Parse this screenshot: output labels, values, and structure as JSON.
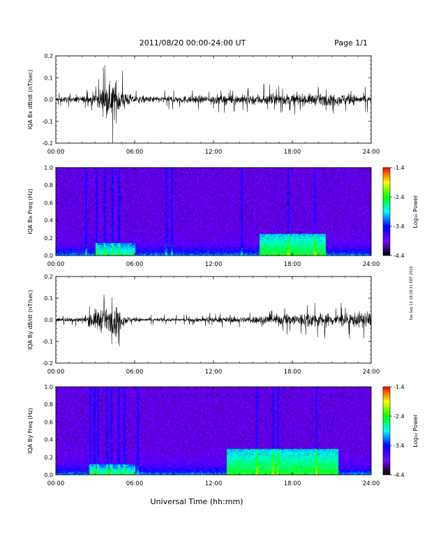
{
  "header": {
    "title": "2011/08/20  00:00-24:00 UT",
    "page": "Page 1/1"
  },
  "footer": {
    "xlabel": "Universal Time (hh:mm)",
    "side_stamp": "Tue Sep 13 18:28:31 EDT 2016"
  },
  "chart_data": [
    {
      "type": "line",
      "name": "bx-timeseries",
      "ylabel": "IQA Bx dB/dt (nT/sec)",
      "xlim_hours": [
        0,
        24
      ],
      "ylim": [
        -0.2,
        0.2
      ],
      "x_ticks": [
        "00:00",
        "06:00",
        "12:00",
        "18:00",
        "24:00"
      ],
      "y_ticks": [
        "-0.2",
        "-0.1",
        "0.0",
        "0.1",
        "0.2"
      ],
      "y_tick_values": [
        -0.2,
        -0.1,
        0.0,
        0.1,
        0.2
      ],
      "envelope": {
        "hours": [
          0,
          1,
          2,
          2.5,
          3,
          3.5,
          4,
          4.3,
          4.6,
          4.8,
          5.0,
          5.3,
          5.6,
          6,
          7,
          8,
          9,
          10,
          11,
          12,
          13,
          14,
          15,
          16,
          17,
          18,
          19,
          20,
          21,
          22,
          23,
          24
        ],
        "amplitude": [
          0.03,
          0.03,
          0.035,
          0.05,
          0.08,
          0.12,
          0.15,
          0.19,
          0.2,
          0.17,
          0.13,
          0.09,
          0.06,
          0.04,
          0.035,
          0.035,
          0.04,
          0.04,
          0.04,
          0.05,
          0.05,
          0.05,
          0.06,
          0.06,
          0.06,
          0.06,
          0.06,
          0.06,
          0.06,
          0.06,
          0.05,
          0.05
        ]
      }
    },
    {
      "type": "heatmap",
      "name": "bx-spectrogram",
      "ylabel": "IQA Bx Freq (Hz)",
      "xlim_hours": [
        0,
        24
      ],
      "ylim": [
        0.0,
        1.0
      ],
      "x_ticks": [
        "00:00",
        "06:00",
        "12:00",
        "18:00",
        "24:00"
      ],
      "y_ticks": [
        "0.0",
        "0.2",
        "0.4",
        "0.6",
        "0.8",
        "1.0"
      ],
      "colorbar": {
        "label": "Log₁₀ Power",
        "range": [
          -4.4,
          -1.4
        ],
        "ticks": [
          "-1.4",
          "-2.4",
          "-3.4",
          "-4.4"
        ],
        "colors": [
          "#ff0000",
          "#ffff00",
          "#00ff00",
          "#00ffff",
          "#0000ff",
          "#7a00ff",
          "#000000"
        ]
      },
      "enhancements": [
        {
          "hour_from": 3.0,
          "hour_to": 6.0,
          "freq_top": 0.15,
          "level": -2.6
        },
        {
          "hour_from": 15.5,
          "hour_to": 20.5,
          "freq_top": 0.25,
          "level": -2.4
        }
      ],
      "vertical_streaks_hours": [
        2.3,
        3.1,
        3.7,
        4.3,
        4.8,
        8.4,
        8.8,
        14.1,
        17.7,
        19.7
      ]
    },
    {
      "type": "line",
      "name": "by-timeseries",
      "ylabel": "IQA By dB/dt (nT/sec)",
      "xlim_hours": [
        0,
        24
      ],
      "ylim": [
        -0.2,
        0.2
      ],
      "x_ticks": [
        "00:00",
        "06:00",
        "12:00",
        "18:00",
        "24:00"
      ],
      "y_ticks": [
        "-0.2",
        "-0.1",
        "0.0",
        "0.1",
        "0.2"
      ],
      "y_tick_values": [
        -0.2,
        -0.1,
        0.0,
        0.1,
        0.2
      ],
      "envelope": {
        "hours": [
          0,
          1,
          2,
          2.5,
          3,
          3.5,
          4,
          4.3,
          4.6,
          4.8,
          5.0,
          5.3,
          5.6,
          6,
          7,
          8,
          9,
          10,
          11,
          12,
          13,
          14,
          15,
          16,
          17,
          18,
          19,
          20,
          21,
          22,
          23,
          24
        ],
        "amplitude": [
          0.02,
          0.025,
          0.03,
          0.06,
          0.11,
          0.13,
          0.1,
          0.14,
          0.17,
          0.12,
          0.08,
          0.05,
          0.03,
          0.02,
          0.02,
          0.02,
          0.02,
          0.02,
          0.025,
          0.03,
          0.03,
          0.035,
          0.04,
          0.05,
          0.06,
          0.07,
          0.08,
          0.08,
          0.07,
          0.07,
          0.08,
          0.09
        ]
      }
    },
    {
      "type": "heatmap",
      "name": "by-spectrogram",
      "ylabel": "IQA By Freq (Hz)",
      "xlim_hours": [
        0,
        24
      ],
      "ylim": [
        0.0,
        1.0
      ],
      "x_ticks": [
        "00:00",
        "06:00",
        "12:00",
        "18:00",
        "24:00"
      ],
      "y_ticks": [
        "0.0",
        "0.2",
        "0.4",
        "0.6",
        "0.8",
        "1.0"
      ],
      "colorbar": {
        "label": "Log₁₀ Power",
        "range": [
          -4.4,
          -1.4
        ],
        "ticks": [
          "-1.4",
          "-2.4",
          "-3.4",
          "-4.4"
        ],
        "colors": [
          "#ff0000",
          "#ffff00",
          "#00ff00",
          "#00ffff",
          "#0000ff",
          "#7a00ff",
          "#000000"
        ]
      },
      "enhancements": [
        {
          "hour_from": 2.5,
          "hour_to": 6.0,
          "freq_top": 0.12,
          "level": -2.6
        },
        {
          "hour_from": 13.0,
          "hour_to": 21.5,
          "freq_top": 0.3,
          "level": -2.4
        }
      ],
      "vertical_streaks_hours": [
        2.6,
        2.9,
        3.2,
        3.9,
        4.2,
        4.8,
        5.2,
        6.2,
        15.3,
        16.5,
        16.9,
        19.8
      ]
    }
  ]
}
